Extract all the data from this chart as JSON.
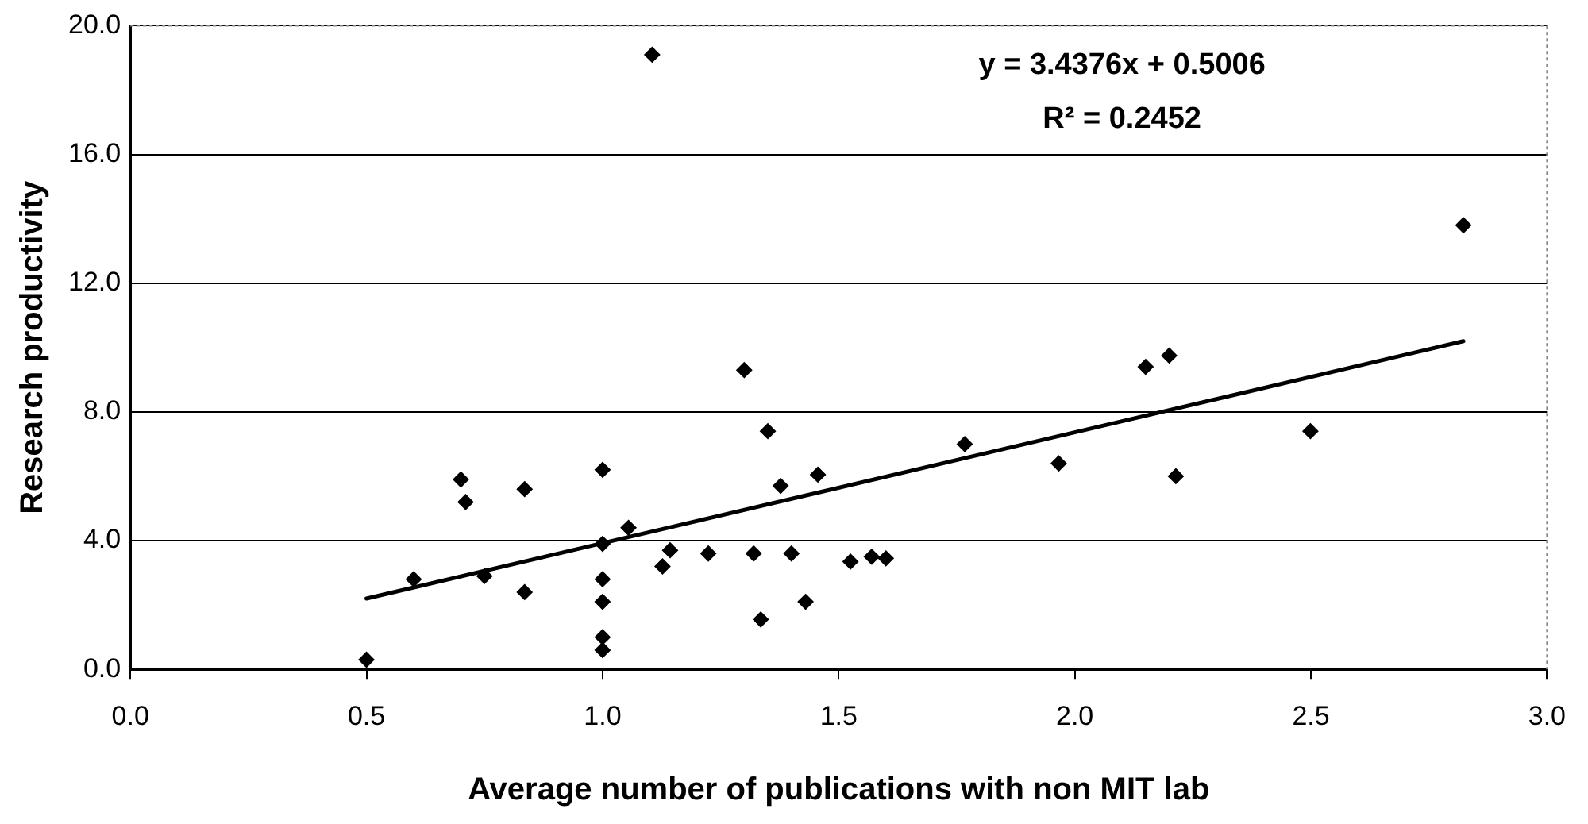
{
  "chart_data": {
    "type": "scatter",
    "xlabel": "Average number of publications with non MIT lab",
    "ylabel": "Research productivity",
    "xlim": [
      0,
      3
    ],
    "ylim": [
      0,
      20
    ],
    "xticks": [
      {
        "value": 0,
        "label": "0.0"
      },
      {
        "value": 0.5,
        "label": "0.5"
      },
      {
        "value": 1,
        "label": "1.0"
      },
      {
        "value": 1.5,
        "label": "1.5"
      },
      {
        "value": 2,
        "label": "2.0"
      },
      {
        "value": 2.5,
        "label": "2.5"
      },
      {
        "value": 3,
        "label": "3.0"
      }
    ],
    "yticks": [
      {
        "value": 0,
        "label": "0.0"
      },
      {
        "value": 4,
        "label": "4.0"
      },
      {
        "value": 8,
        "label": "8.0"
      },
      {
        "value": 12,
        "label": "12.0"
      },
      {
        "value": 16,
        "label": "16.0"
      },
      {
        "value": 20,
        "label": "20.0"
      }
    ],
    "grid": "y",
    "legend": false,
    "marker": "diamond",
    "series": [
      {
        "type": "scatter",
        "color": "#000000",
        "x": [
          0.5,
          0.6,
          0.7,
          0.71,
          0.75,
          0.835,
          0.835,
          1.0,
          1.0,
          1.0,
          1.0,
          1.0,
          1.0,
          1.105,
          1.055,
          1.127,
          1.143,
          1.224,
          1.3,
          1.32,
          1.335,
          1.35,
          1.377,
          1.456,
          1.4,
          1.43,
          1.525,
          1.57,
          1.6,
          1.767,
          1.966,
          2.15,
          2.2,
          2.214,
          2.499,
          2.823
        ],
        "values": [
          0.3,
          2.8,
          5.9,
          5.2,
          2.9,
          5.6,
          2.4,
          6.2,
          3.9,
          2.8,
          2.1,
          1.0,
          0.6,
          19.1,
          4.4,
          3.2,
          3.7,
          3.6,
          9.3,
          3.6,
          1.55,
          7.4,
          5.7,
          6.05,
          3.6,
          2.1,
          3.35,
          3.5,
          3.45,
          7.0,
          6.4,
          9.4,
          9.75,
          6.0,
          7.4,
          13.8
        ]
      },
      {
        "type": "line",
        "color": "#000000",
        "marker": "none",
        "x": [
          0.5,
          2.823
        ],
        "values": [
          2.2,
          10.2
        ]
      }
    ],
    "annotations": [
      "y = 3.4376x + 0.5006",
      "R² = 0.2452"
    ]
  }
}
